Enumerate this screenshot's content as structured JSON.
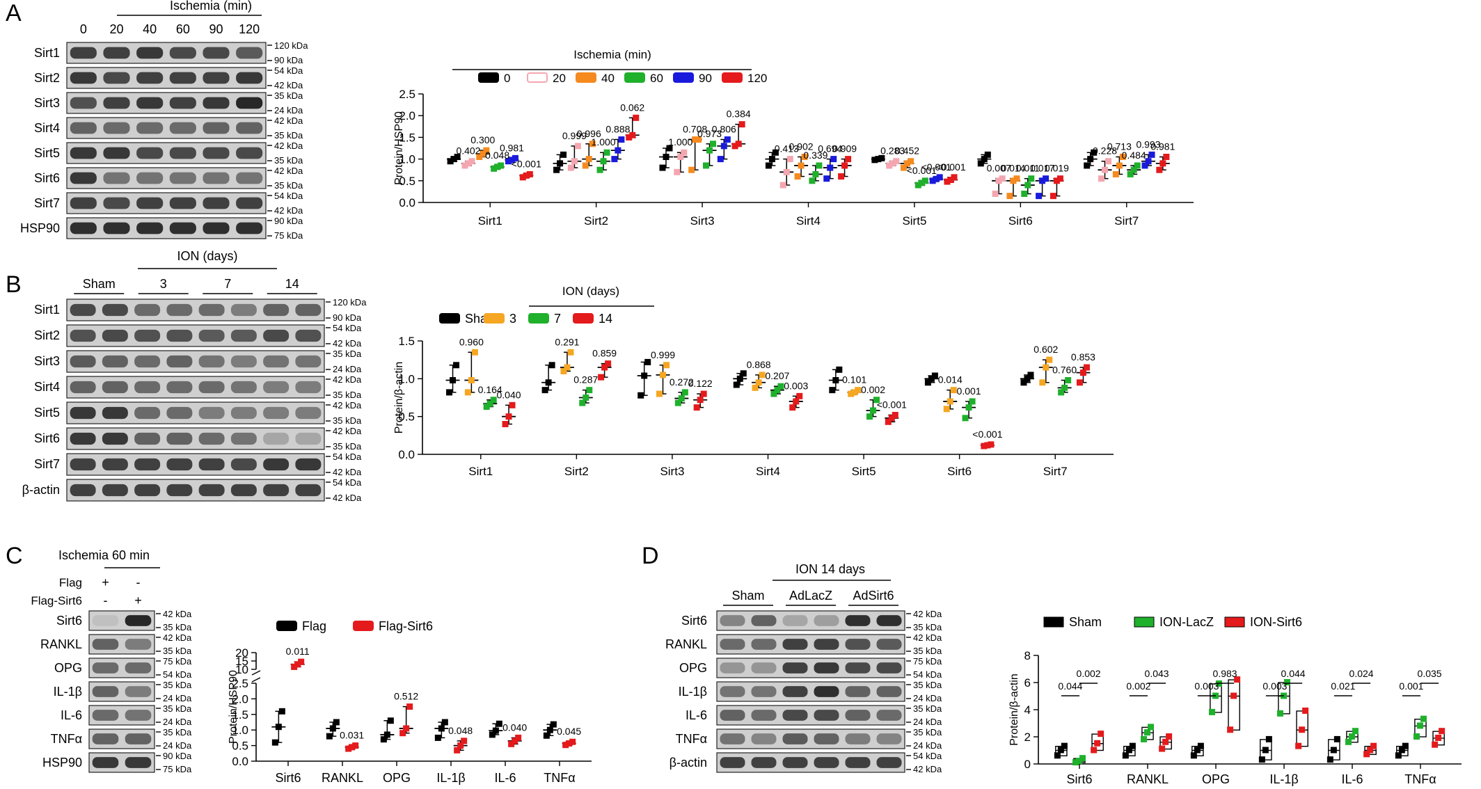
{
  "figure": {
    "panels": {
      "A": {
        "letter": "A",
        "blot": {
          "condition_title": "Ischemia (min)",
          "lane_labels": [
            "0",
            "20",
            "40",
            "60",
            "90",
            "120"
          ],
          "rows": [
            "Sirt1",
            "Sirt2",
            "Sirt3",
            "Sirt4",
            "Sirt5",
            "Sirt6",
            "Sirt7",
            "HSP90"
          ],
          "markers": [
            [
              "120 kDa",
              "90 kDa"
            ],
            [
              "54 kDa",
              "42 kDa"
            ],
            [
              "35 kDa",
              "24 kDa"
            ],
            [
              "42 kDa",
              "35 kDa"
            ],
            [
              "42 kDa",
              "35 kDa"
            ],
            [
              "42 kDa",
              "35 kDa"
            ],
            [
              "54 kDa",
              "42 kDa"
            ],
            [
              "90 kDa",
              "75 kDa"
            ]
          ]
        }
      },
      "B": {
        "letter": "B",
        "blot": {
          "condition_title": "ION (days)",
          "lane_labels": [
            "Sham",
            "3",
            "7",
            "14"
          ],
          "rows": [
            "Sirt1",
            "Sirt2",
            "Sirt3",
            "Sirt4",
            "Sirt5",
            "Sirt6",
            "Sirt7",
            "β-actin"
          ],
          "markers": [
            [
              "120 kDa",
              "90 kDa"
            ],
            [
              "54 kDa",
              "42 kDa"
            ],
            [
              "35 kDa",
              "24 kDa"
            ],
            [
              "42 kDa",
              "35 kDa"
            ],
            [
              "42 kDa",
              "35 kDa"
            ],
            [
              "42 kDa",
              "35 kDa"
            ],
            [
              "54 kDa",
              "42 kDa"
            ],
            [
              "54 kDa",
              "42 kDa"
            ]
          ]
        }
      },
      "C": {
        "letter": "C",
        "blot": {
          "condition_title": "Ischemia 60 min",
          "cond_rows": [
            {
              "label": "Flag",
              "marks": [
                "+",
                "-"
              ]
            },
            {
              "label": "Flag-Sirt6",
              "marks": [
                "-",
                "+"
              ]
            }
          ],
          "rows": [
            "Sirt6",
            "RANKL",
            "OPG",
            "IL-1β",
            "IL-6",
            "TNFα",
            "HSP90"
          ],
          "markers": [
            [
              "42 kDa",
              "35 kDa"
            ],
            [
              "42 kDa",
              "35 kDa"
            ],
            [
              "75 kDa",
              "54 kDa"
            ],
            [
              "35 kDa",
              "24 kDa"
            ],
            [
              "35 kDa",
              "24 kDa"
            ],
            [
              "35 kDa",
              "24 kDa"
            ],
            [
              "90 kDa",
              "75 kDa"
            ]
          ]
        }
      },
      "D": {
        "letter": "D",
        "blot": {
          "condition_title": "ION 14 days",
          "lane_labels": [
            "Sham",
            "AdLacZ",
            "AdSirt6"
          ],
          "rows": [
            "Sirt6",
            "RANKL",
            "OPG",
            "IL-1β",
            "IL-6",
            "TNFα",
            "β-actin"
          ],
          "markers": [
            [
              "42 kDa",
              "35 kDa"
            ],
            [
              "42 kDa",
              "35 kDa"
            ],
            [
              "75 kDa",
              "54 kDa"
            ],
            [
              "35 kDa",
              "24 kDa"
            ],
            [
              "35 kDa",
              "24 kDa"
            ],
            [
              "35 kDa",
              "24 kDa"
            ],
            [
              "54 kDa",
              "42 kDa"
            ]
          ]
        }
      }
    }
  },
  "chart_data": [
    {
      "panel": "A",
      "type": "scatter",
      "legend_title": "Ischemia (min)",
      "legend_placement": "top",
      "ylabel": "Protein/HSP90",
      "xlabel": "",
      "ylim": [
        0,
        2.5
      ],
      "yticks": [
        "0.0",
        "0.5",
        "1.0",
        "1.5",
        "2.0",
        "2.5"
      ],
      "categories": [
        "Sirt1",
        "Sirt2",
        "Sirt3",
        "Sirt4",
        "Sirt5",
        "Sirt6",
        "Sirt7"
      ],
      "series": [
        {
          "name": "0",
          "color": "#000000",
          "values": [
            [
              0.95,
              1.05,
              1.0
            ],
            [
              0.75,
              1.1,
              0.9
            ],
            [
              0.8,
              1.25,
              1.05
            ],
            [
              0.85,
              1.15,
              1.0
            ],
            [
              0.98,
              1.02,
              1.0
            ],
            [
              0.9,
              1.1,
              1.0
            ],
            [
              0.85,
              1.15,
              1.0
            ]
          ]
        },
        {
          "name": "20",
          "color": "#f4a6b0",
          "values": [
            [
              0.85,
              0.95,
              0.9
            ],
            [
              0.8,
              1.3,
              0.95
            ],
            [
              0.7,
              1.15,
              1.05
            ],
            [
              0.4,
              1.0,
              0.7
            ],
            [
              0.85,
              0.95,
              0.9
            ],
            [
              0.2,
              0.55,
              0.5
            ],
            [
              0.55,
              0.95,
              0.75
            ]
          ]
        },
        {
          "name": "40",
          "color": "#f58a1f",
          "values": [
            [
              1.05,
              1.2,
              1.12
            ],
            [
              0.85,
              1.35,
              1.0
            ],
            [
              0.75,
              1.45,
              1.45
            ],
            [
              0.6,
              1.05,
              0.85
            ],
            [
              0.8,
              0.95,
              0.9
            ],
            [
              0.15,
              0.55,
              0.5
            ],
            [
              0.65,
              1.05,
              0.85
            ]
          ]
        },
        {
          "name": "60",
          "color": "#1fb02c",
          "values": [
            [
              0.78,
              0.85,
              0.82
            ],
            [
              0.75,
              1.15,
              0.95
            ],
            [
              0.85,
              1.35,
              1.2
            ],
            [
              0.5,
              0.85,
              0.65
            ],
            [
              0.4,
              0.5,
              0.45
            ],
            [
              0.2,
              0.55,
              0.4
            ],
            [
              0.65,
              0.85,
              0.75
            ]
          ]
        },
        {
          "name": "90",
          "color": "#1a1adc",
          "values": [
            [
              0.95,
              1.02,
              0.98
            ],
            [
              1.0,
              1.45,
              1.2
            ],
            [
              1.0,
              1.45,
              1.3
            ],
            [
              0.55,
              1.0,
              0.8
            ],
            [
              0.5,
              0.58,
              0.54
            ],
            [
              0.15,
              0.55,
              0.5
            ],
            [
              0.85,
              1.1,
              0.95
            ]
          ]
        },
        {
          "name": "120",
          "color": "#e41a1c",
          "values": [
            [
              0.58,
              0.65,
              0.62
            ],
            [
              1.5,
              1.95,
              1.55
            ],
            [
              1.3,
              1.8,
              1.35
            ],
            [
              0.6,
              1.0,
              0.85
            ],
            [
              0.48,
              0.58,
              0.52
            ],
            [
              0.15,
              0.55,
              0.5
            ],
            [
              0.75,
              1.05,
              0.9
            ]
          ]
        }
      ],
      "annotations": [
        [
          "0.402",
          "0.300",
          "0.048",
          "0.981",
          "<0.001"
        ],
        [
          "0.999",
          "0.996",
          "1.000",
          "0.888",
          "0.062"
        ],
        [
          "1.000",
          "0.708",
          "0.973",
          "0.806",
          "0.384"
        ],
        [
          "0.413",
          "0.902",
          "0.339",
          "0.694",
          "0.909"
        ],
        [
          "0.283",
          "0.452",
          "<0.001",
          "<0.001",
          "<0.001"
        ],
        [
          "0.007",
          "0.014",
          "0.011",
          "0.017",
          "0.019"
        ],
        [
          "0.228",
          "0.713",
          "0.484",
          "0.993",
          "0.981"
        ]
      ]
    },
    {
      "panel": "B",
      "type": "scatter",
      "legend_title": "ION (days)",
      "legend_placement": "top",
      "ylabel": "Protein/β-actin",
      "xlabel": "",
      "ylim": [
        0,
        1.5
      ],
      "yticks": [
        "0.0",
        "0.5",
        "1.0",
        "1.5"
      ],
      "categories": [
        "Sirt1",
        "Sirt2",
        "Sirt3",
        "Sirt4",
        "Sirt5",
        "Sirt6",
        "Sirt7"
      ],
      "series": [
        {
          "name": "Sham",
          "color": "#000000",
          "values": [
            [
              0.82,
              1.18,
              0.98
            ],
            [
              0.85,
              1.18,
              0.95
            ],
            [
              0.78,
              1.22,
              1.04
            ],
            [
              0.92,
              1.07,
              1.0
            ],
            [
              0.85,
              1.12,
              0.98
            ],
            [
              0.95,
              1.04,
              1.0
            ],
            [
              0.95,
              1.05,
              1.0
            ]
          ]
        },
        {
          "name": "3",
          "color": "#f5a623",
          "values": [
            [
              0.82,
              1.35,
              0.98
            ],
            [
              1.1,
              1.35,
              1.15
            ],
            [
              0.8,
              1.18,
              1.05
            ],
            [
              0.88,
              1.05,
              0.95
            ],
            [
              0.8,
              0.85,
              0.82
            ],
            [
              0.6,
              0.85,
              0.7
            ],
            [
              0.95,
              1.25,
              1.15
            ]
          ]
        },
        {
          "name": "7",
          "color": "#1fb02c",
          "values": [
            [
              0.63,
              0.72,
              0.67
            ],
            [
              0.68,
              0.85,
              0.75
            ],
            [
              0.68,
              0.82,
              0.74
            ],
            [
              0.8,
              0.9,
              0.85
            ],
            [
              0.5,
              0.72,
              0.58
            ],
            [
              0.48,
              0.7,
              0.62
            ],
            [
              0.82,
              0.98,
              0.88
            ]
          ]
        },
        {
          "name": "14",
          "color": "#e41a1c",
          "values": [
            [
              0.4,
              0.65,
              0.5
            ],
            [
              1.02,
              1.2,
              1.15
            ],
            [
              0.62,
              0.8,
              0.72
            ],
            [
              0.62,
              0.77,
              0.7
            ],
            [
              0.43,
              0.52,
              0.48
            ],
            [
              0.11,
              0.13,
              0.12
            ],
            [
              0.95,
              1.15,
              1.08
            ]
          ]
        }
      ],
      "annotations": [
        [
          "0.960",
          "0.164",
          "0.040"
        ],
        [
          "0.291",
          "0.287",
          "0.859"
        ],
        [
          "0.999",
          "0.272",
          "0.122"
        ],
        [
          "0.868",
          "0.207",
          "0.003"
        ],
        [
          "0.101",
          "0.002",
          "<0.001"
        ],
        [
          "0.014",
          "0.001",
          "<0.001"
        ],
        [
          "0.602",
          "0.760",
          "0.853"
        ]
      ]
    },
    {
      "panel": "C",
      "type": "scatter",
      "legend_placement": "top",
      "ylabel": "Protein/HSP90",
      "xlabel": "",
      "ylim": [
        0,
        20
      ],
      "axis_break": [
        2.5,
        10
      ],
      "yticks": [
        "0.0",
        "0.5",
        "1.0",
        "1.5",
        "2.0",
        "2.5",
        "10",
        "15",
        "20"
      ],
      "categories": [
        "Sirt6",
        "RANKL",
        "OPG",
        "IL-1β",
        "IL-6",
        "TNFα"
      ],
      "series": [
        {
          "name": "Flag",
          "color": "#000000",
          "values": [
            [
              0.6,
              1.6,
              1.1
            ],
            [
              0.8,
              1.25,
              1.05
            ],
            [
              0.7,
              1.3,
              0.85
            ],
            [
              0.75,
              1.25,
              1.05
            ],
            [
              0.85,
              1.2,
              0.98
            ],
            [
              0.82,
              1.18,
              1.0
            ]
          ]
        },
        {
          "name": "Flag-Sirt6",
          "color": "#e41a1c",
          "values": [
            [
              11.5,
              14.5,
              13.0
            ],
            [
              0.4,
              0.5,
              0.45
            ],
            [
              0.9,
              1.75,
              1.05
            ],
            [
              0.35,
              0.65,
              0.5
            ],
            [
              0.55,
              0.75,
              0.65
            ],
            [
              0.52,
              0.62,
              0.57
            ]
          ]
        }
      ],
      "annotations": [
        [
          "0.011"
        ],
        [
          "0.031"
        ],
        [
          "0.512"
        ],
        [
          "0.048"
        ],
        [
          "0.040"
        ],
        [
          "0.045"
        ]
      ]
    },
    {
      "panel": "D",
      "type": "box",
      "legend_placement": "top",
      "ylabel": "Protein/β-actin",
      "xlabel": "",
      "ylim": [
        0,
        8
      ],
      "yticks": [
        "0",
        "2",
        "4",
        "6",
        "8"
      ],
      "categories": [
        "Sirt6",
        "RANKL",
        "OPG",
        "IL-1β",
        "IL-6",
        "TNFα"
      ],
      "series": [
        {
          "name": "Sham",
          "color": "#000000",
          "values": [
            [
              0.6,
              1.3,
              1.0
            ],
            [
              0.6,
              1.3,
              1.0
            ],
            [
              0.6,
              1.3,
              1.0
            ],
            [
              0.3,
              1.8,
              1.0
            ],
            [
              0.3,
              1.8,
              1.0
            ],
            [
              0.6,
              1.3,
              1.0
            ]
          ]
        },
        {
          "name": "ION-LacZ",
          "color": "#1fb02c",
          "values": [
            [
              0.1,
              0.4,
              0.2
            ],
            [
              1.8,
              2.7,
              2.3
            ],
            [
              3.8,
              5.9,
              5.0
            ],
            [
              3.7,
              6.0,
              5.0
            ],
            [
              1.6,
              2.4,
              2.0
            ],
            [
              2.0,
              3.3,
              2.8
            ]
          ]
        },
        {
          "name": "ION-Sirt6",
          "color": "#e41a1c",
          "values": [
            [
              1.0,
              2.2,
              1.5
            ],
            [
              1.1,
              2.0,
              1.6
            ],
            [
              2.5,
              6.2,
              5.0
            ],
            [
              1.3,
              3.9,
              2.5
            ],
            [
              0.7,
              1.3,
              1.0
            ],
            [
              1.4,
              2.4,
              1.9
            ]
          ]
        }
      ],
      "brackets": [
        [
          "0.044",
          "0.002"
        ],
        [
          "0.002",
          "0.043"
        ],
        [
          "0.003",
          "0.983"
        ],
        [
          "0.003",
          "0.044"
        ],
        [
          "0.021",
          "0.024"
        ],
        [
          "0.001",
          "0.035"
        ]
      ]
    }
  ]
}
